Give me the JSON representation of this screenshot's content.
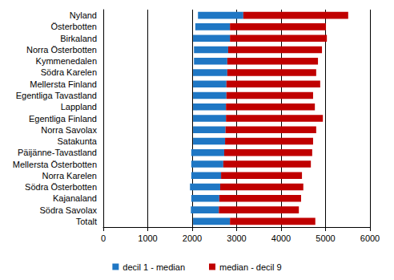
{
  "chart_data": {
    "type": "bar",
    "orientation": "horizontal",
    "categories": [
      "Nyland",
      "Österbotten",
      "Birkaland",
      "Norra Österbotten",
      "Kymmenedalen",
      "Södra Karelen",
      "Mellersta Finland",
      "Egentliga Tavastland",
      "Lappland",
      "Egentliga Finland",
      "Norra Savolax",
      "Satakunta",
      "Päijänne-Tavastland",
      "Mellersta Österbotten",
      "Norra Karelen",
      "Södra Österbotten",
      "Kajanaland",
      "Södra Savolax",
      "Totalt"
    ],
    "series": [
      {
        "name": "decil 1 - median",
        "color": "#1f77c4",
        "values": [
          [
            2130,
            3150
          ],
          [
            2070,
            2850
          ],
          [
            2020,
            2850
          ],
          [
            2040,
            2810
          ],
          [
            2040,
            2790
          ],
          [
            2020,
            2790
          ],
          [
            2020,
            2770
          ],
          [
            2020,
            2770
          ],
          [
            2020,
            2760
          ],
          [
            2020,
            2760
          ],
          [
            2020,
            2750
          ],
          [
            2020,
            2740
          ],
          [
            1980,
            2720
          ],
          [
            1980,
            2700
          ],
          [
            1980,
            2650
          ],
          [
            1950,
            2630
          ],
          [
            1980,
            2610
          ],
          [
            1970,
            2600
          ],
          [
            2020,
            2850
          ]
        ]
      },
      {
        "name": "median - decil 9",
        "color": "#c00000",
        "values": [
          [
            3150,
            5510
          ],
          [
            2850,
            5010
          ],
          [
            2850,
            5030
          ],
          [
            2810,
            4920
          ],
          [
            2790,
            4830
          ],
          [
            2790,
            4790
          ],
          [
            2770,
            4880
          ],
          [
            2770,
            4720
          ],
          [
            2760,
            4760
          ],
          [
            2760,
            4940
          ],
          [
            2750,
            4790
          ],
          [
            2740,
            4720
          ],
          [
            2720,
            4700
          ],
          [
            2700,
            4670
          ],
          [
            2650,
            4470
          ],
          [
            2630,
            4500
          ],
          [
            2610,
            4450
          ],
          [
            2600,
            4400
          ],
          [
            2850,
            4770
          ]
        ]
      }
    ],
    "xlim": [
      0,
      6000
    ],
    "xticks": [
      0,
      1000,
      2000,
      3000,
      4000,
      5000,
      6000
    ],
    "grid": true,
    "legend": "bottom",
    "stacked": true
  }
}
